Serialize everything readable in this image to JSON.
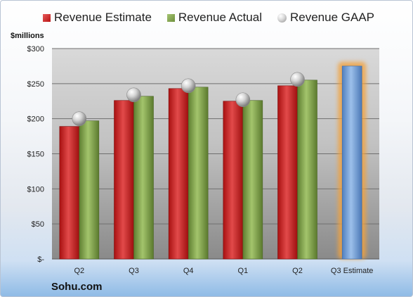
{
  "chart_data": {
    "type": "bar",
    "categories": [
      "Q2",
      "Q3",
      "Q4",
      "Q1",
      "Q2",
      "Q3 Estimate"
    ],
    "series": [
      {
        "name": "Revenue Estimate",
        "values": [
          189,
          226,
          243,
          225,
          247,
          null
        ],
        "color": "#c9201f"
      },
      {
        "name": "Revenue Actual",
        "values": [
          197,
          232,
          245,
          226,
          255,
          null
        ],
        "color": "#86a84f"
      },
      {
        "name": "Revenue GAAP",
        "values": [
          200,
          234,
          247,
          227,
          256,
          null
        ],
        "color": "#a6a6a6"
      },
      {
        "name": "Q3 Estimate",
        "values": [
          null,
          null,
          null,
          null,
          null,
          275
        ],
        "color": "#6f9ed8"
      }
    ],
    "ylabel": "$millions",
    "ylim": [
      0,
      300
    ],
    "yticks": [
      0,
      50,
      100,
      150,
      200,
      250,
      300
    ],
    "ytick_labels": [
      "$-",
      "$50",
      "$100",
      "$150",
      "$200",
      "$250",
      "$300"
    ],
    "grid": true,
    "legend_position": "top"
  },
  "legend": {
    "estimate": "Revenue Estimate",
    "actual": "Revenue Actual",
    "gaap": "Revenue GAAP"
  },
  "company": "Sohu.com",
  "highlight_color": "#f2a23c"
}
